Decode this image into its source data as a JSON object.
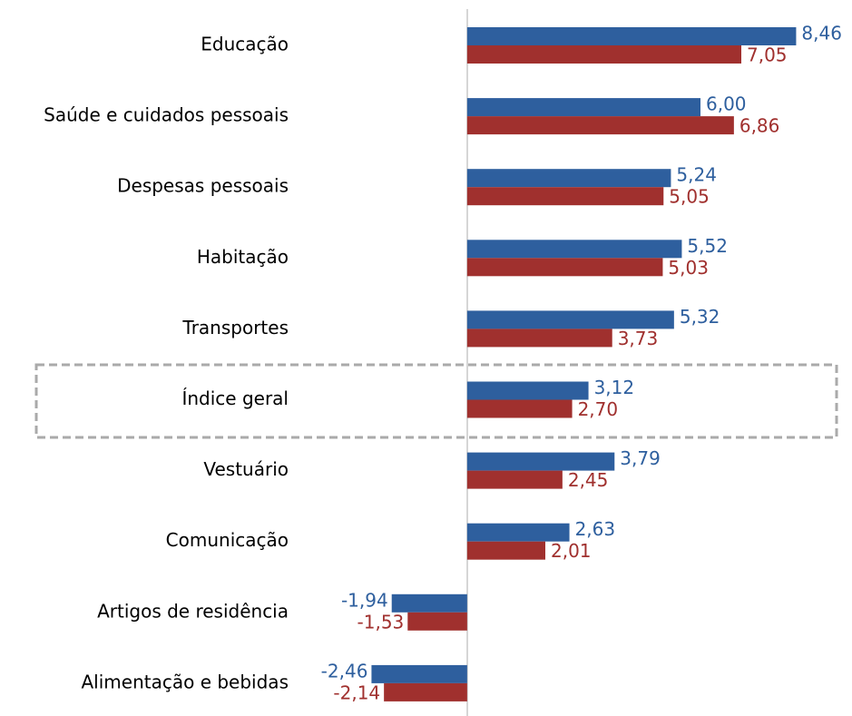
{
  "chart_data": {
    "type": "hbar",
    "categories": [
      "Educação",
      "Saúde e cuidados pessoais",
      "Despesas pessoais",
      "Habitação",
      "Transportes",
      "Índice geral",
      "Vestuário",
      "Comunicação",
      "Artigos de residência",
      "Alimentação e bebidas"
    ],
    "series": [
      {
        "color": "#2e5f9e",
        "values": [
          8.46,
          6.0,
          5.24,
          5.52,
          5.32,
          3.12,
          3.79,
          2.63,
          -1.94,
          -2.46
        ],
        "value_labels": [
          "8,46",
          "6,00",
          "5,24",
          "5,52",
          "5,32",
          "3,12",
          "3,79",
          "2,63",
          "-1,94",
          "-2,46"
        ]
      },
      {
        "color": "#a0302e",
        "values": [
          7.05,
          6.86,
          5.05,
          5.03,
          3.73,
          2.7,
          2.45,
          2.01,
          -1.53,
          -2.14
        ],
        "value_labels": [
          "7,05",
          "6,86",
          "5,05",
          "5,03",
          "3,73",
          "2,70",
          "2,45",
          "2,01",
          "-1,53",
          "-2,14"
        ]
      }
    ],
    "xlim": [
      -4.5,
      9.5
    ]
  }
}
